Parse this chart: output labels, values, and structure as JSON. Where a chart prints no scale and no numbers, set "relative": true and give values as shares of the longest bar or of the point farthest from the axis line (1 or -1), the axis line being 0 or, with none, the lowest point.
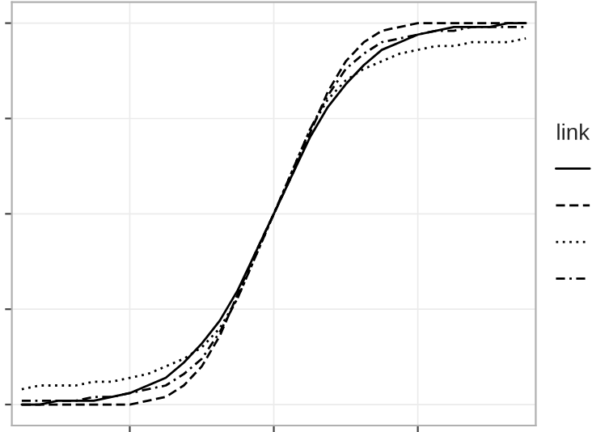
{
  "chart_data": {
    "type": "line",
    "relative": true,
    "legend_title": "link",
    "grid": true,
    "categories": [
      null,
      null,
      null,
      null,
      null,
      null,
      null,
      null,
      null,
      null,
      null,
      null,
      null,
      null,
      null,
      null,
      null,
      null,
      null,
      null,
      null,
      null,
      null,
      null,
      null,
      null,
      null,
      null,
      null
    ],
    "series": [
      {
        "color": "#000000",
        "line_style": "solid",
        "values": [
          0.0,
          0.0,
          0.01,
          0.01,
          0.01,
          0.02,
          0.03,
          0.05,
          0.07,
          0.11,
          0.16,
          0.22,
          0.3,
          0.4,
          0.5,
          0.6,
          0.7,
          0.78,
          0.84,
          0.89,
          0.93,
          0.95,
          0.97,
          0.98,
          0.99,
          0.99,
          0.99,
          1.0,
          1.0
        ]
      },
      {
        "color": "#000000",
        "line_style": "dashed",
        "values": [
          0.0,
          0.0,
          0.0,
          0.0,
          0.0,
          0.0,
          0.0,
          0.01,
          0.02,
          0.05,
          0.1,
          0.18,
          0.29,
          0.4,
          0.5,
          0.6,
          0.71,
          0.82,
          0.9,
          0.95,
          0.98,
          0.99,
          1.0,
          1.0,
          1.0,
          1.0,
          1.0,
          1.0,
          1.0
        ]
      },
      {
        "color": "#000000",
        "line_style": "dotted",
        "values": [
          0.04,
          0.05,
          0.05,
          0.05,
          0.06,
          0.06,
          0.07,
          0.08,
          0.1,
          0.12,
          0.15,
          0.2,
          0.28,
          0.39,
          0.5,
          0.61,
          0.72,
          0.8,
          0.85,
          0.88,
          0.9,
          0.92,
          0.93,
          0.94,
          0.94,
          0.95,
          0.95,
          0.95,
          0.96
        ]
      },
      {
        "color": "#000000",
        "line_style": "dashdot",
        "values": [
          0.01,
          0.01,
          0.01,
          0.01,
          0.02,
          0.02,
          0.03,
          0.04,
          0.05,
          0.08,
          0.12,
          0.19,
          0.28,
          0.39,
          0.5,
          0.61,
          0.72,
          0.81,
          0.88,
          0.92,
          0.95,
          0.96,
          0.97,
          0.98,
          0.98,
          0.99,
          0.99,
          0.99,
          0.99
        ]
      }
    ]
  }
}
